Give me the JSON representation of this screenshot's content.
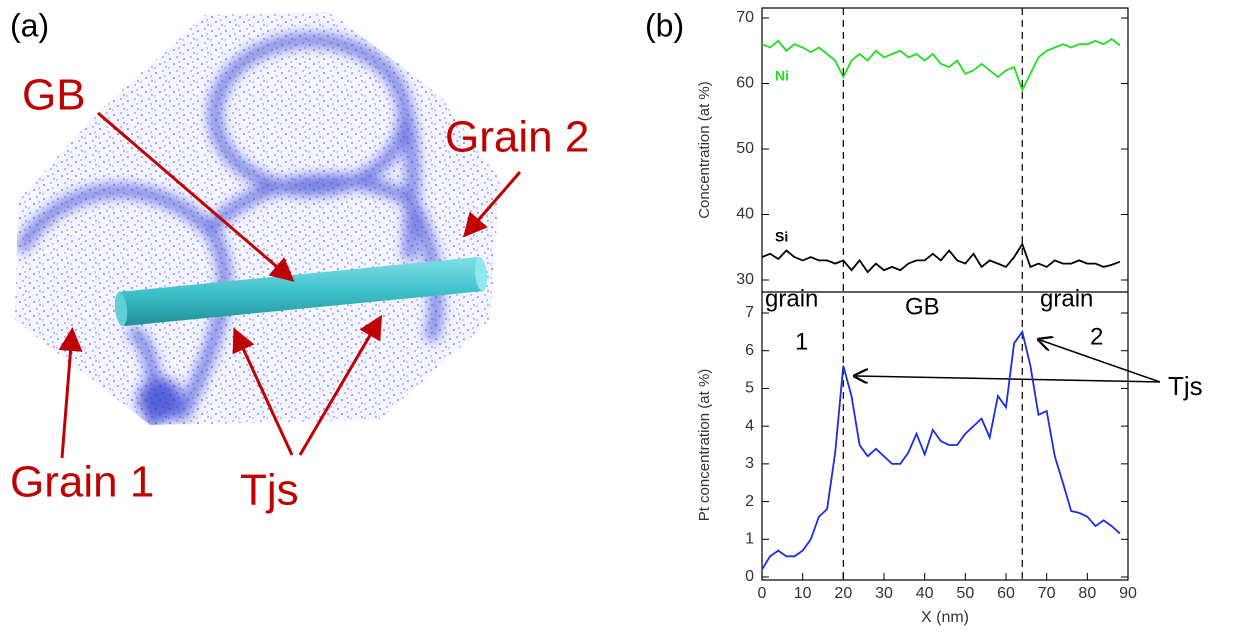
{
  "panel_a": {
    "label": "(a)",
    "annotations": [
      "GB",
      "Grain 2",
      "Grain 1",
      "Tjs"
    ]
  },
  "panel_b": {
    "label": "(b)"
  },
  "chart_data": [
    {
      "type": "line",
      "ylabel": "Concentration (at %)",
      "xlim": [
        0,
        90
      ],
      "ylim": [
        30,
        70
      ],
      "yticks": [
        30,
        40,
        50,
        60,
        70
      ],
      "x": [
        0,
        2,
        4,
        6,
        8,
        10,
        12,
        14,
        16,
        18,
        20,
        22,
        24,
        26,
        28,
        30,
        32,
        34,
        36,
        38,
        40,
        42,
        44,
        46,
        48,
        50,
        52,
        54,
        56,
        58,
        60,
        62,
        64,
        66,
        68,
        70,
        72,
        74,
        76,
        78,
        80,
        82,
        84,
        86,
        88
      ],
      "series": [
        {
          "name": "Ni",
          "color": "#22dd22",
          "values": [
            66,
            65.5,
            66.5,
            65,
            66,
            65.5,
            64.8,
            65.5,
            64.5,
            63.5,
            61,
            63.5,
            64.5,
            63.5,
            65,
            64,
            64.5,
            65,
            64,
            64.5,
            63.5,
            64.5,
            63,
            62.5,
            63.5,
            61.5,
            62,
            63,
            62,
            61,
            62,
            62.5,
            59,
            61.5,
            64,
            65,
            65.5,
            66,
            65.5,
            66,
            66,
            66.5,
            66,
            66.8,
            65.8
          ]
        },
        {
          "name": "Si",
          "color": "#000000",
          "values": [
            33.5,
            34,
            33.2,
            34.5,
            33.5,
            33,
            33.5,
            33,
            33,
            32.5,
            33,
            31.5,
            33,
            31.2,
            32.5,
            31.5,
            32,
            31.5,
            32.5,
            33,
            33,
            34,
            33,
            34.5,
            33,
            32.5,
            34,
            32,
            33,
            32.5,
            32,
            33.5,
            35.5,
            32,
            32.5,
            32,
            33,
            32.5,
            32.5,
            33,
            32.5,
            32.5,
            32,
            32.3,
            32.8
          ]
        }
      ]
    },
    {
      "type": "line",
      "ylabel": "Pt concentration (at %)",
      "xlabel": "X (nm)",
      "xlim": [
        0,
        90
      ],
      "xticks": [
        0,
        10,
        20,
        30,
        40,
        50,
        60,
        70,
        80,
        90
      ],
      "ylim": [
        0,
        7
      ],
      "yticks": [
        0,
        1,
        2,
        3,
        4,
        5,
        6,
        7
      ],
      "vlines": [
        20,
        64
      ],
      "annotations": [
        "grain",
        "1",
        "GB",
        "grain",
        "2",
        "Tjs"
      ],
      "x": [
        0,
        2,
        4,
        6,
        8,
        10,
        12,
        14,
        16,
        18,
        20,
        22,
        24,
        26,
        28,
        30,
        32,
        34,
        36,
        38,
        40,
        42,
        44,
        46,
        48,
        50,
        52,
        54,
        56,
        58,
        60,
        62,
        64,
        66,
        68,
        70,
        72,
        74,
        76,
        78,
        80,
        82,
        84,
        86,
        88
      ],
      "series": [
        {
          "color": "#1a2ee0",
          "values": [
            0.2,
            0.55,
            0.7,
            0.55,
            0.55,
            0.7,
            1.0,
            1.6,
            1.8,
            3.3,
            5.6,
            4.8,
            3.5,
            3.2,
            3.4,
            3.2,
            3.0,
            3.0,
            3.3,
            3.8,
            3.25,
            3.9,
            3.6,
            3.5,
            3.5,
            3.8,
            4.0,
            4.2,
            3.7,
            4.8,
            4.5,
            6.2,
            6.5,
            5.6,
            4.3,
            4.4,
            3.2,
            2.5,
            1.75,
            1.7,
            1.6,
            1.35,
            1.5,
            1.35,
            1.15
          ]
        }
      ]
    }
  ]
}
